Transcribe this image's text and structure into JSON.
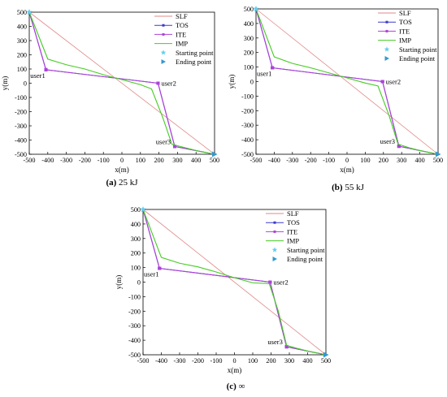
{
  "chart_data": [
    {
      "type": "line",
      "caption_label": "(a)",
      "caption_text": "25 kJ",
      "xlabel": "x(m)",
      "ylabel": "y(m)",
      "xlim": [
        -500,
        500
      ],
      "ylim": [
        -500,
        500
      ],
      "xticks": [
        -500,
        -400,
        -300,
        -200,
        -100,
        0,
        100,
        200,
        300,
        400,
        500
      ],
      "yticks": [
        -500,
        -400,
        -300,
        -200,
        -100,
        0,
        100,
        200,
        300,
        400,
        500
      ],
      "legend_position": "top-right",
      "series": [
        {
          "name": "SLF",
          "color": "#e08a8a",
          "x": [
            -500,
            500
          ],
          "y": [
            500,
            -500
          ]
        },
        {
          "name": "TOS",
          "color": "#3a3ad0",
          "x": [
            -500,
            -410,
            195,
            285,
            500
          ],
          "y": [
            500,
            95,
            0,
            -445,
            -500
          ]
        },
        {
          "name": "ITE",
          "color": "#b040d8",
          "x": [
            -500,
            -410,
            195,
            285,
            500
          ],
          "y": [
            500,
            95,
            0,
            -445,
            -500
          ]
        },
        {
          "name": "IMP",
          "color": "#44cc22",
          "x": [
            -500,
            -400,
            -300,
            -200,
            -100,
            0,
            100,
            160,
            220,
            270,
            330,
            420,
            500
          ],
          "y": [
            500,
            170,
            130,
            100,
            60,
            25,
            -10,
            -40,
            -240,
            -430,
            -450,
            -480,
            -500
          ]
        }
      ],
      "markers": [
        {
          "name": "Starting point",
          "color": "#66ccee",
          "shape": "star",
          "x": -500,
          "y": 500
        },
        {
          "name": "Ending point",
          "color": "#3399cc",
          "shape": "triangle",
          "x": 500,
          "y": -500
        }
      ],
      "users": [
        {
          "label": "user1",
          "x": -410,
          "y": 95
        },
        {
          "label": "user2",
          "x": 195,
          "y": 0
        },
        {
          "label": "user3",
          "x": 285,
          "y": -445
        }
      ]
    },
    {
      "type": "line",
      "caption_label": "(b)",
      "caption_text": "55 kJ",
      "xlabel": "x(m)",
      "ylabel": "y(m)",
      "xlim": [
        -500,
        500
      ],
      "ylim": [
        -500,
        500
      ],
      "xticks": [
        -500,
        -400,
        -300,
        -200,
        -100,
        0,
        100,
        200,
        300,
        400,
        500
      ],
      "yticks": [
        -500,
        -400,
        -300,
        -200,
        -100,
        0,
        100,
        200,
        300,
        400,
        500
      ],
      "legend_position": "top-right",
      "series": [
        {
          "name": "SLF",
          "color": "#e08a8a",
          "x": [
            -500,
            500
          ],
          "y": [
            500,
            -500
          ]
        },
        {
          "name": "TOS",
          "color": "#3a3ad0",
          "x": [
            -500,
            -410,
            195,
            285,
            500
          ],
          "y": [
            500,
            95,
            0,
            -445,
            -500
          ]
        },
        {
          "name": "ITE",
          "color": "#b040d8",
          "x": [
            -500,
            -410,
            195,
            285,
            500
          ],
          "y": [
            500,
            95,
            0,
            -445,
            -500
          ]
        },
        {
          "name": "IMP",
          "color": "#44cc22",
          "x": [
            -500,
            -400,
            -300,
            -200,
            -100,
            0,
            100,
            170,
            230,
            280,
            340,
            420,
            500
          ],
          "y": [
            500,
            170,
            125,
            95,
            60,
            25,
            -10,
            -30,
            -230,
            -430,
            -455,
            -480,
            -500
          ]
        }
      ],
      "markers": [
        {
          "name": "Starting point",
          "color": "#66ccee",
          "shape": "star",
          "x": -500,
          "y": 500
        },
        {
          "name": "Ending point",
          "color": "#3399cc",
          "shape": "triangle",
          "x": 500,
          "y": -500
        }
      ],
      "users": [
        {
          "label": "user1",
          "x": -410,
          "y": 95
        },
        {
          "label": "user2",
          "x": 195,
          "y": 0
        },
        {
          "label": "user3",
          "x": 285,
          "y": -445
        }
      ]
    },
    {
      "type": "line",
      "caption_label": "(c)",
      "caption_text": "∞",
      "xlabel": "x(m)",
      "ylabel": "y(m)",
      "xlim": [
        -500,
        500
      ],
      "ylim": [
        -500,
        500
      ],
      "xticks": [
        -500,
        -400,
        -300,
        -200,
        -100,
        0,
        100,
        200,
        300,
        400,
        500
      ],
      "yticks": [
        -500,
        -400,
        -300,
        -200,
        -100,
        0,
        100,
        200,
        300,
        400,
        500
      ],
      "legend_position": "top-right",
      "series": [
        {
          "name": "SLF",
          "color": "#e08a8a",
          "x": [
            -500,
            500
          ],
          "y": [
            500,
            -500
          ]
        },
        {
          "name": "TOS",
          "color": "#3a3ad0",
          "x": [
            -500,
            -410,
            195,
            285,
            500
          ],
          "y": [
            500,
            95,
            0,
            -445,
            -500
          ]
        },
        {
          "name": "ITE",
          "color": "#b040d8",
          "x": [
            -500,
            -410,
            195,
            285,
            500
          ],
          "y": [
            500,
            95,
            0,
            -445,
            -500
          ]
        },
        {
          "name": "IMP",
          "color": "#44cc22",
          "x": [
            -500,
            -400,
            -300,
            -200,
            -100,
            0,
            100,
            190,
            240,
            285,
            340,
            420,
            500
          ],
          "y": [
            500,
            170,
            130,
            105,
            70,
            30,
            -5,
            -10,
            -200,
            -435,
            -455,
            -480,
            -500
          ]
        }
      ],
      "markers": [
        {
          "name": "Starting point",
          "color": "#66ccee",
          "shape": "star",
          "x": -500,
          "y": 500
        },
        {
          "name": "Ending point",
          "color": "#3399cc",
          "shape": "triangle",
          "x": 500,
          "y": -500
        }
      ],
      "users": [
        {
          "label": "user1",
          "x": -410,
          "y": 95
        },
        {
          "label": "user2",
          "x": 195,
          "y": 0
        },
        {
          "label": "user3",
          "x": 285,
          "y": -445
        }
      ]
    }
  ]
}
